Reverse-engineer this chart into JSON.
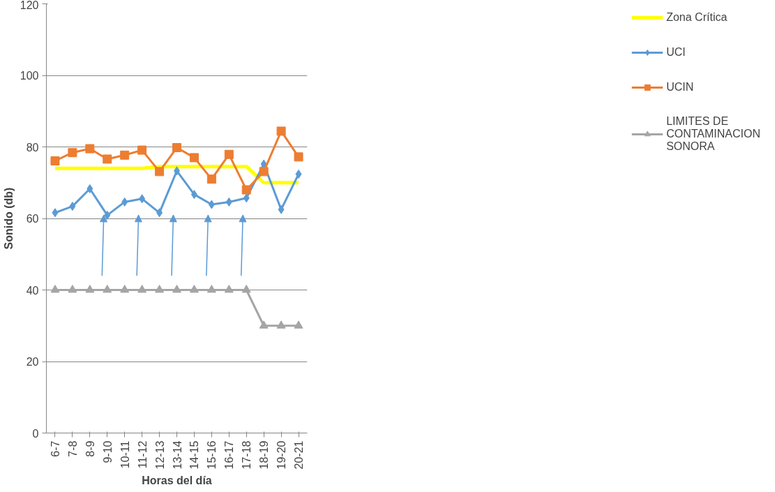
{
  "chart_data": {
    "type": "line",
    "xlabel": "Horas del día",
    "ylabel": "Sonido (db)",
    "categories": [
      "6-7",
      "7-8",
      "8-9",
      "9-10",
      "10-11",
      "11-12",
      "12-13",
      "13-14",
      "14-15",
      "15-16",
      "16-17",
      "17-18",
      "18-19",
      "19-20",
      "20-21"
    ],
    "ylim": [
      0,
      120
    ],
    "yticks": [
      0,
      20,
      40,
      60,
      80,
      100,
      120
    ],
    "grid": "y",
    "legend": "right",
    "series": [
      {
        "name": "Zona Crítica",
        "color": "#ffff00",
        "marker": "none",
        "values": [
          74,
          74,
          74,
          74,
          74,
          74,
          74.5,
          74.5,
          74.5,
          74.5,
          74.5,
          74.5,
          70,
          70,
          70
        ]
      },
      {
        "name": "UCI",
        "color": "#5b9bd5",
        "marker": "diamond",
        "values": [
          61.6,
          63.4,
          68.3,
          60.9,
          64.6,
          65.5,
          61.6,
          73.3,
          66.7,
          63.9,
          64.6,
          65.7,
          75.2,
          62.5,
          72.4
        ]
      },
      {
        "name": "UCIN",
        "color": "#ed7d31",
        "marker": "square",
        "values": [
          76.1,
          78.4,
          79.5,
          76.6,
          77.7,
          79.1,
          73.1,
          79.8,
          77.0,
          71.0,
          77.9,
          68.0,
          73.1,
          84.4,
          77.2
        ]
      },
      {
        "name": "LIMITES DE CONTAMINACION SONORA",
        "color": "#a5a5a5",
        "marker": "triangle",
        "values": [
          40,
          40,
          40,
          40,
          40,
          40,
          40,
          40,
          40,
          40,
          40,
          40,
          30,
          30,
          30
        ]
      }
    ]
  }
}
